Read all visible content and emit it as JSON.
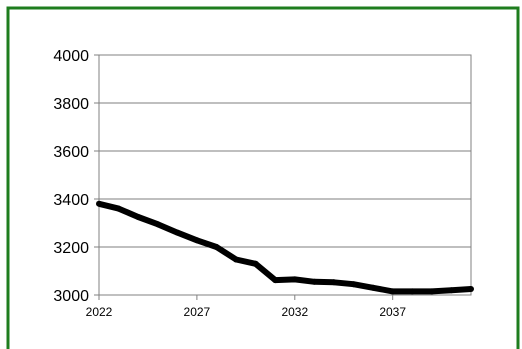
{
  "colors": {
    "border": "#1e7d1e",
    "plot_border": "#808080",
    "gridline": "#7f7f7f",
    "series": "#000000"
  },
  "chart_data": {
    "type": "line",
    "title": "",
    "xlabel": "",
    "ylabel": "",
    "xlim": [
      2022,
      2041
    ],
    "ylim": [
      3000,
      4000
    ],
    "y_ticks": [
      3000,
      3200,
      3400,
      3600,
      3800,
      4000
    ],
    "x_ticks": [
      2022,
      2027,
      2032,
      2037
    ],
    "y_tick_labels": [
      "3000",
      "3200",
      "3400",
      "3600",
      "3800",
      "4000"
    ],
    "x_tick_labels": [
      "2022",
      "2027",
      "2032",
      "2037"
    ],
    "grid": "horizontal",
    "legend": "none",
    "series": [
      {
        "x": [
          2022,
          2023,
          2024,
          2025,
          2026,
          2027,
          2028,
          2029,
          2030,
          2031,
          2032,
          2033,
          2034,
          2035,
          2036,
          2037,
          2038,
          2039,
          2040,
          2041
        ],
        "values": [
          3380,
          3360,
          3325,
          3295,
          3260,
          3228,
          3200,
          3148,
          3130,
          3062,
          3065,
          3055,
          3053,
          3045,
          3030,
          3015,
          3015,
          3015,
          3020,
          3025
        ]
      }
    ]
  }
}
